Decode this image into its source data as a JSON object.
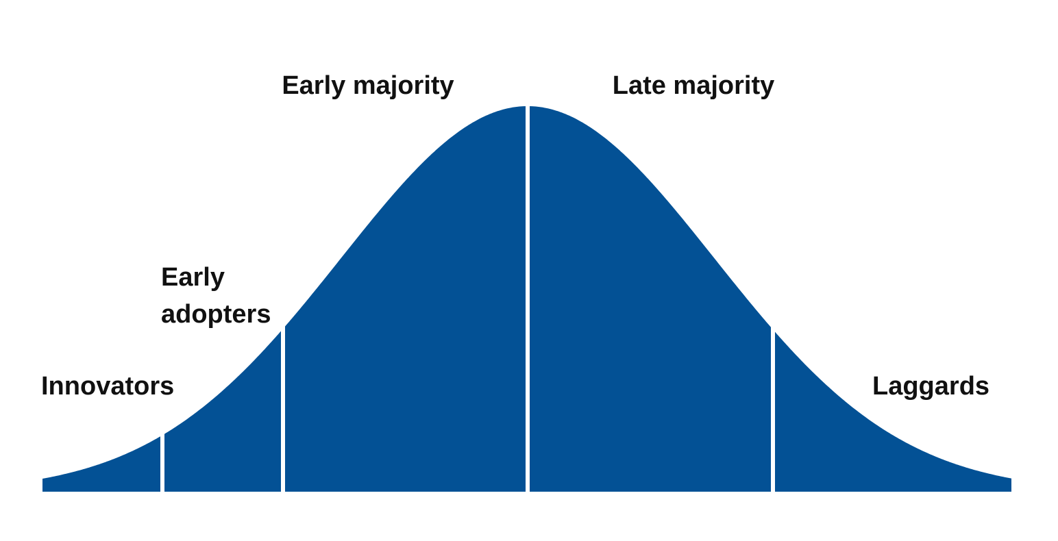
{
  "segments": [
    {
      "label": [
        "Innovators"
      ]
    },
    {
      "label": [
        "Early",
        "adopters"
      ]
    },
    {
      "label": [
        "Early majority"
      ]
    },
    {
      "label": [
        "Late majority"
      ]
    },
    {
      "label": [
        "Laggards"
      ]
    }
  ]
}
